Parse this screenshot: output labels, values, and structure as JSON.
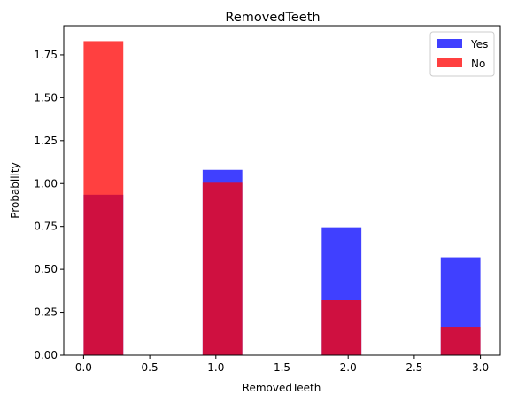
{
  "chart_data": {
    "type": "bar",
    "title": "RemovedTeeth",
    "xlabel": "RemovedTeeth",
    "ylabel": "Probability",
    "xlim": [
      -0.15,
      3.15
    ],
    "ylim": [
      0,
      1.92
    ],
    "xticks": [
      0.0,
      0.5,
      1.0,
      1.5,
      2.0,
      2.5,
      3.0
    ],
    "xtick_labels": [
      "0.0",
      "0.5",
      "1.0",
      "1.5",
      "2.0",
      "2.5",
      "3.0"
    ],
    "yticks": [
      0.0,
      0.25,
      0.5,
      0.75,
      1.0,
      1.25,
      1.5,
      1.75
    ],
    "ytick_labels": [
      "0.00",
      "0.25",
      "0.50",
      "0.75",
      "1.00",
      "1.25",
      "1.50",
      "1.75"
    ],
    "bin_width": 0.3,
    "x": [
      0.0,
      1.0,
      2.0,
      3.0
    ],
    "grid": false,
    "legend_position": "top-right",
    "series": [
      {
        "name": "Yes",
        "color": "#0000ff",
        "opacity": 0.75,
        "bin_starts": [
          0.0,
          0.9,
          1.8,
          2.7
        ],
        "values": [
          0.935,
          1.08,
          0.745,
          0.57
        ]
      },
      {
        "name": "No",
        "color": "#ff0000",
        "opacity": 0.75,
        "bin_starts": [
          0.0,
          0.9,
          1.8,
          2.7
        ],
        "values": [
          1.83,
          1.005,
          0.32,
          0.165
        ]
      }
    ]
  }
}
